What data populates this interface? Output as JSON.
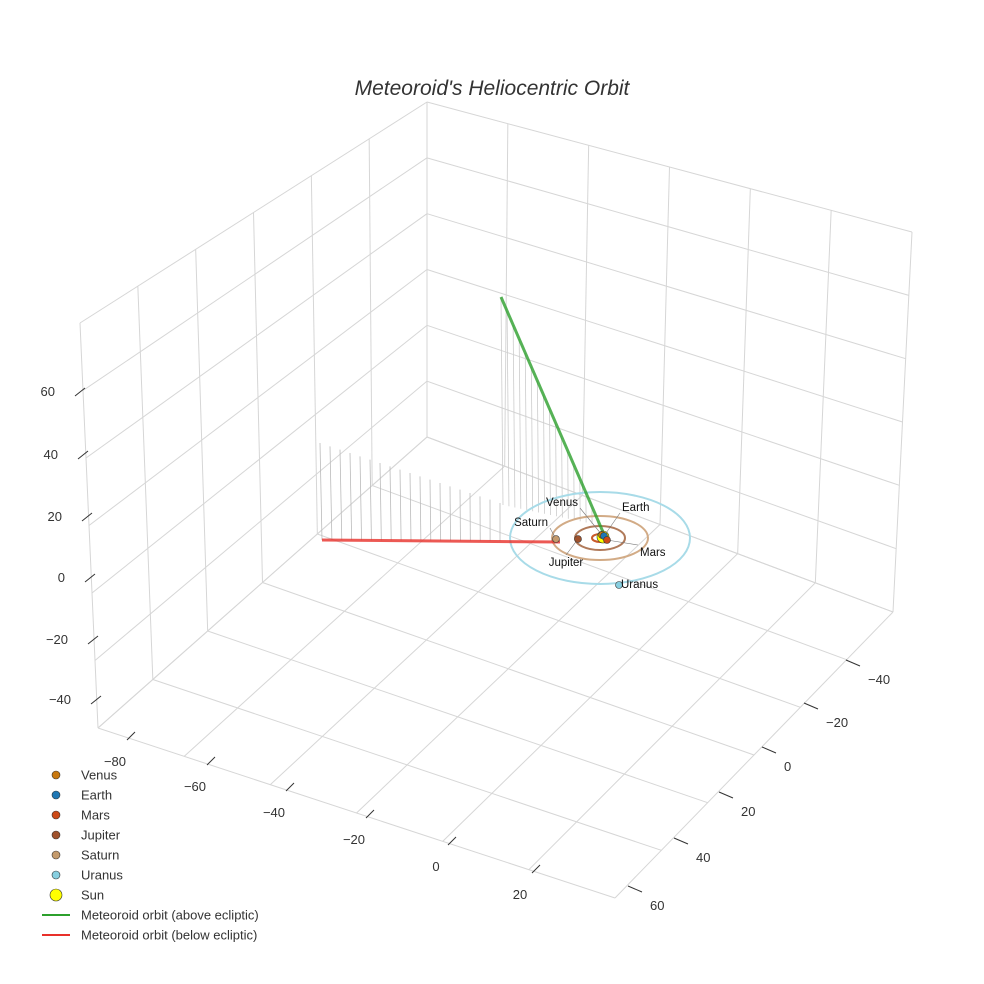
{
  "chart_data": {
    "type": "scatter3d",
    "title": "Meteoroid's Heliocentric Orbit",
    "axes": {
      "x": {
        "ticks": [
          "−80",
          "−60",
          "−40",
          "−20",
          "0",
          "20"
        ],
        "range": [
          -90,
          35
        ]
      },
      "y": {
        "ticks": [
          "−40",
          "−20",
          "0",
          "20",
          "40",
          "60"
        ],
        "range": [
          -50,
          65
        ]
      },
      "z": {
        "ticks": [
          "60",
          "40",
          "20",
          "0",
          "−20",
          "−40"
        ],
        "range": [
          -50,
          75
        ]
      }
    },
    "grid": true,
    "legend_position": "bottom-left",
    "series": [
      {
        "name": "Venus",
        "type": "marker",
        "color": "#c8780f",
        "label": "Venus"
      },
      {
        "name": "Earth",
        "type": "marker",
        "color": "#1f77b4",
        "label": "Earth"
      },
      {
        "name": "Mars",
        "type": "marker",
        "color": "#cc4a17",
        "label": "Mars"
      },
      {
        "name": "Jupiter",
        "type": "marker",
        "color": "#a0522d",
        "label": "Jupiter"
      },
      {
        "name": "Saturn",
        "type": "marker",
        "color": "#c49a6c",
        "label": "Saturn"
      },
      {
        "name": "Uranus",
        "type": "marker",
        "color": "#87cfe0",
        "label": "Uranus"
      },
      {
        "name": "Sun",
        "type": "marker",
        "color": "#ffff00",
        "label": ""
      },
      {
        "name": "Meteoroid orbit (above ecliptic)",
        "type": "line",
        "color": "#2ca02c"
      },
      {
        "name": "Meteoroid orbit (below ecliptic)",
        "type": "line",
        "color": "#e8302a"
      }
    ]
  }
}
